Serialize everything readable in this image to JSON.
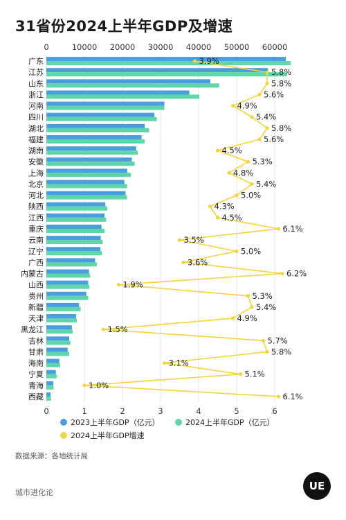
{
  "page": {
    "title": "31省份2024上半年GDP及增速",
    "source": "数据来源：各地统计局",
    "brand": "城市进化论",
    "logo_text": "UE"
  },
  "chart_data": {
    "type": "bar",
    "orientation": "horizontal",
    "categories": [
      "广东",
      "江苏",
      "山东",
      "浙江",
      "河南",
      "四川",
      "湖北",
      "福建",
      "湖南",
      "安徽",
      "上海",
      "北京",
      "河北",
      "陕西",
      "江西",
      "重庆",
      "云南",
      "辽宁",
      "广西",
      "内蒙古",
      "山西",
      "贵州",
      "新疆",
      "天津",
      "黑龙江",
      "吉林",
      "甘肃",
      "海南",
      "宁夏",
      "青海",
      "西藏"
    ],
    "series": [
      {
        "name": "2023上半年GDP（亿元）",
        "color": "#4a9ee0",
        "axis": "top",
        "values": [
          62910,
          58210,
          43095,
          37568,
          31017,
          28389,
          25867,
          25040,
          23590,
          22451,
          21250,
          20490,
          20800,
          15500,
          15300,
          14500,
          14300,
          14200,
          12800,
          11200,
          11000,
          10500,
          8600,
          7800,
          6700,
          6000,
          5600,
          3400,
          2500,
          1800,
          1100
        ]
      },
      {
        "name": "2024上半年GDP（亿元）",
        "color": "#5ed6a8",
        "axis": "top",
        "values": [
          64200,
          63100,
          45400,
          40200,
          31000,
          29000,
          27000,
          25800,
          24000,
          23200,
          22200,
          21200,
          21200,
          16000,
          15700,
          15300,
          14800,
          14600,
          13300,
          11500,
          11300,
          11000,
          9000,
          8000,
          6900,
          6300,
          6000,
          3600,
          2700,
          1900,
          1200
        ]
      },
      {
        "name": "2024上半年GDP增速",
        "color": "#f5d33a",
        "axis": "bottom",
        "labels": [
          "3.9%",
          "5.8%",
          "5.8%",
          "5.6%",
          "4.9%",
          "5.4%",
          "5.8%",
          "5.6%",
          "4.5%",
          "5.3%",
          "4.8%",
          "5.4%",
          "5.0%",
          "4.3%",
          "4.5%",
          "6.1%",
          "3.5%",
          "5.0%",
          "3.6%",
          "6.2%",
          "1.9%",
          "5.3%",
          "5.4%",
          "4.9%",
          "1.5%",
          "5.7%",
          "5.8%",
          "3.1%",
          "5.1%",
          "1.0%",
          "6.1%"
        ],
        "values": [
          3.9,
          5.8,
          5.8,
          5.6,
          4.9,
          5.4,
          5.8,
          5.6,
          4.5,
          5.3,
          4.8,
          5.4,
          5.0,
          4.3,
          4.5,
          6.1,
          3.5,
          5.0,
          3.6,
          6.2,
          1.9,
          5.3,
          5.4,
          4.9,
          1.5,
          5.7,
          5.8,
          3.1,
          5.1,
          1.0,
          6.1
        ]
      }
    ],
    "x_top": {
      "range": [
        0,
        66000
      ],
      "ticks": [
        0,
        10000,
        20000,
        30000,
        40000,
        50000,
        60000
      ]
    },
    "x_bottom": {
      "range": [
        0,
        6.6
      ],
      "ticks": [
        0,
        1,
        2,
        3,
        4,
        5,
        6
      ]
    },
    "grid": true,
    "legend_position": "bottom"
  }
}
